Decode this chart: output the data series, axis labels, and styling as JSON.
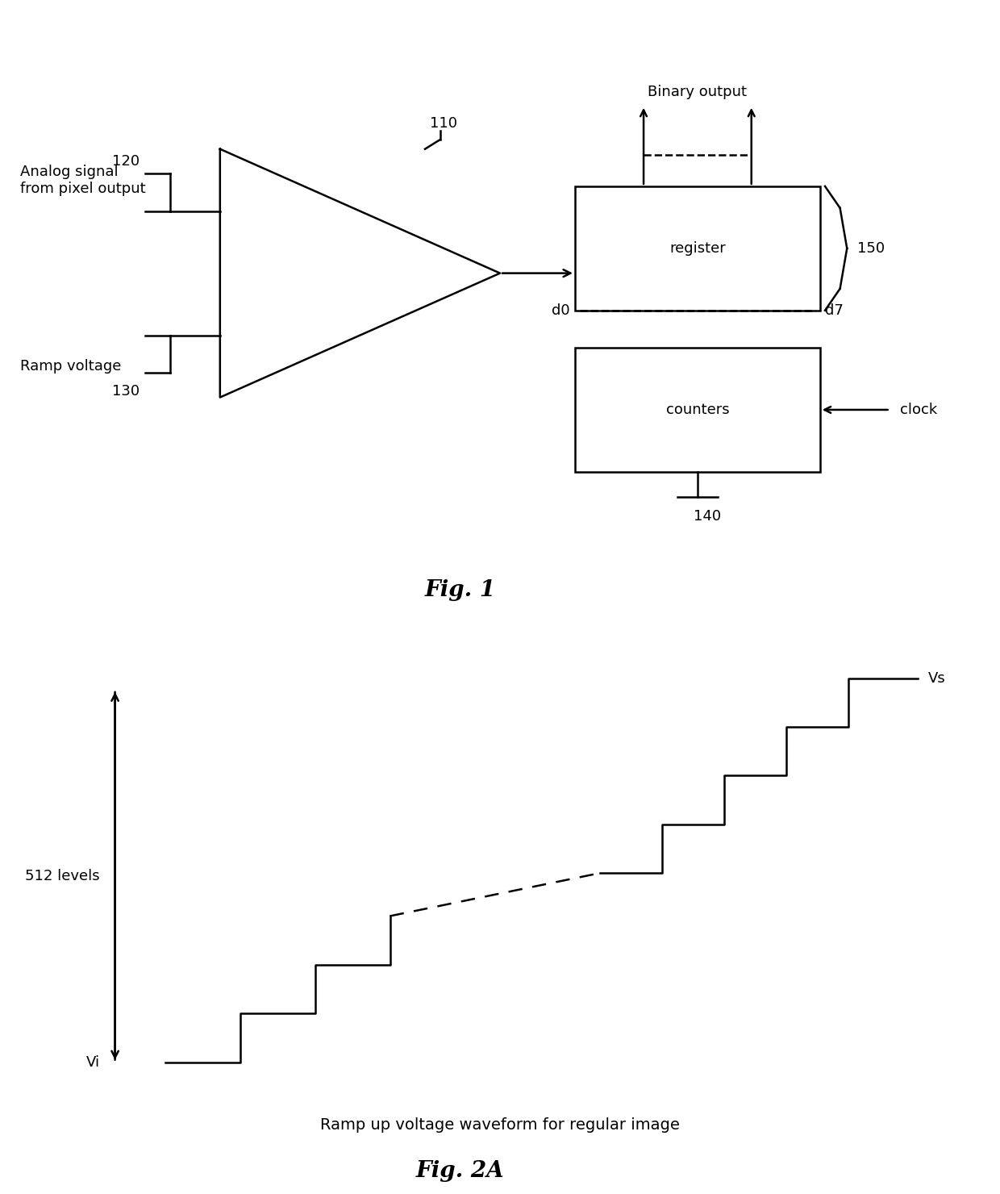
{
  "fig_width": 12.4,
  "fig_height": 14.8,
  "bg_color": "#ffffff",
  "fig1": {
    "title": "Fig. 1",
    "analog_signal_label": "Analog signal\nfrom pixel output",
    "ramp_voltage_label": "Ramp voltage",
    "label_110": "110",
    "label_120": "120",
    "label_130": "130",
    "label_150": "150",
    "label_140": "140",
    "register_label": "register",
    "counters_label": "counters",
    "binary_output_label": "Binary output",
    "clock_label": "clock",
    "d0_label": "d0",
    "d7_label": "d7"
  },
  "fig2a": {
    "title": "Fig. 2A",
    "caption": "Ramp up voltage waveform for regular image",
    "Vi_label": "Vi",
    "Vs_label": "Vs",
    "levels_label": "512 levels"
  }
}
